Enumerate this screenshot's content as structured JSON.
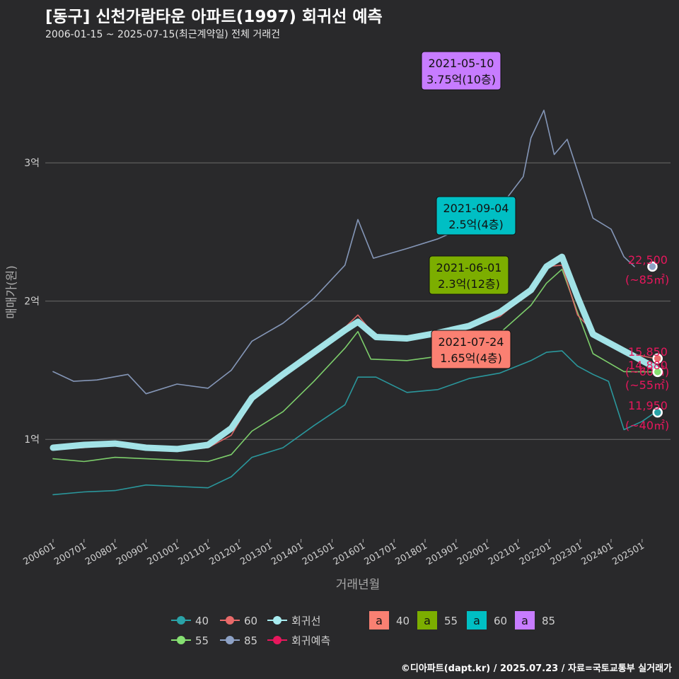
{
  "header": {
    "title": "[동구] 신천가람타운 아파트(1997) 회귀선 예측",
    "subtitle": "2006-01-15 ~ 2025-07-15(최근계약일) 전체 거래건",
    "credit": "©디아파트(dapt.kr) / 2025.07.23 / 자료=국토교통부 실거래가"
  },
  "colors": {
    "background": "#29292b",
    "s40": "#2aa3a8",
    "s55": "#86e072",
    "s60": "#e96a6a",
    "s85": "#8ea2c6",
    "trend": "#a8ecf0",
    "forecast": "#e8175d",
    "callout40": "#fa8072",
    "callout55": "#7cae00",
    "callout60": "#00bfc4",
    "callout85": "#c77cff"
  },
  "chart_data": {
    "type": "line",
    "xlabel": "거래년월",
    "ylabel": "매매가(원)",
    "x_range": [
      "2005-10",
      "2025-12"
    ],
    "ylim": [
      2800,
      38500
    ],
    "y_ticks": [
      {
        "value": 10000,
        "label": "1억"
      },
      {
        "value": 20000,
        "label": "2억"
      },
      {
        "value": 30000,
        "label": "3억"
      }
    ],
    "x_ticks": [
      "200601",
      "200701",
      "200801",
      "200901",
      "201001",
      "201101",
      "201201",
      "201301",
      "201401",
      "201501",
      "201601",
      "201701",
      "201801",
      "201901",
      "202001",
      "202101",
      "202201",
      "202301",
      "202401",
      "202501"
    ],
    "grid": true,
    "series": [
      {
        "name": "40",
        "key": "s40",
        "points": [
          [
            "2006-01",
            6000
          ],
          [
            "2007-01",
            6200
          ],
          [
            "2008-01",
            6300
          ],
          [
            "2009-01",
            6700
          ],
          [
            "2010-01",
            6600
          ],
          [
            "2011-01",
            6500
          ],
          [
            "2011-10",
            7300
          ],
          [
            "2012-06",
            8700
          ],
          [
            "2013-06",
            9400
          ],
          [
            "2014-06",
            11000
          ],
          [
            "2015-06",
            12500
          ],
          [
            "2015-11",
            14500
          ],
          [
            "2016-06",
            14500
          ],
          [
            "2017-06",
            13400
          ],
          [
            "2018-06",
            13600
          ],
          [
            "2019-06",
            14400
          ],
          [
            "2020-06",
            14800
          ],
          [
            "2021-06",
            15700
          ],
          [
            "2021-12",
            16300
          ],
          [
            "2022-06",
            16400
          ],
          [
            "2022-12",
            15300
          ],
          [
            "2023-06",
            14700
          ],
          [
            "2023-12",
            14200
          ],
          [
            "2024-06",
            10700
          ],
          [
            "2025-01",
            11300
          ],
          [
            "2025-06",
            11950
          ]
        ]
      },
      {
        "name": "55",
        "key": "s55",
        "points": [
          [
            "2006-01",
            8600
          ],
          [
            "2007-01",
            8400
          ],
          [
            "2008-01",
            8700
          ],
          [
            "2009-01",
            8600
          ],
          [
            "2010-01",
            8500
          ],
          [
            "2011-01",
            8400
          ],
          [
            "2011-10",
            8900
          ],
          [
            "2012-06",
            10600
          ],
          [
            "2013-06",
            12000
          ],
          [
            "2014-06",
            14200
          ],
          [
            "2015-06",
            16600
          ],
          [
            "2015-11",
            17800
          ],
          [
            "2016-04",
            15800
          ],
          [
            "2017-06",
            15700
          ],
          [
            "2018-06",
            16000
          ],
          [
            "2019-06",
            16500
          ],
          [
            "2020-06",
            17700
          ],
          [
            "2021-06",
            19700
          ],
          [
            "2021-12",
            21300
          ],
          [
            "2022-06",
            22300
          ],
          [
            "2022-12",
            19200
          ],
          [
            "2023-06",
            16200
          ],
          [
            "2024-06",
            14900
          ],
          [
            "2025-06",
            14880
          ]
        ]
      },
      {
        "name": "60",
        "key": "s60",
        "points": [
          [
            "2006-01",
            9300
          ],
          [
            "2007-01",
            9400
          ],
          [
            "2008-01",
            9700
          ],
          [
            "2009-01",
            9500
          ],
          [
            "2010-01",
            9200
          ],
          [
            "2011-01",
            9400
          ],
          [
            "2011-10",
            10300
          ],
          [
            "2012-06",
            12800
          ],
          [
            "2013-06",
            14600
          ],
          [
            "2014-06",
            16200
          ],
          [
            "2015-06",
            18100
          ],
          [
            "2015-11",
            19000
          ],
          [
            "2016-06",
            17400
          ],
          [
            "2017-06",
            17300
          ],
          [
            "2018-06",
            17600
          ],
          [
            "2019-06",
            18100
          ],
          [
            "2020-06",
            18900
          ],
          [
            "2021-06",
            20700
          ],
          [
            "2021-12",
            22500
          ],
          [
            "2022-06",
            22600
          ],
          [
            "2022-12",
            19000
          ],
          [
            "2023-06",
            17800
          ],
          [
            "2024-06",
            16300
          ],
          [
            "2025-06",
            15850
          ]
        ]
      },
      {
        "name": "85",
        "key": "s85",
        "points": [
          [
            "2006-01",
            14900
          ],
          [
            "2006-09",
            14200
          ],
          [
            "2007-06",
            14300
          ],
          [
            "2008-06",
            14700
          ],
          [
            "2009-01",
            13300
          ],
          [
            "2010-01",
            14000
          ],
          [
            "2011-01",
            13700
          ],
          [
            "2011-10",
            15000
          ],
          [
            "2012-06",
            17100
          ],
          [
            "2013-06",
            18400
          ],
          [
            "2014-06",
            20200
          ],
          [
            "2015-06",
            22600
          ],
          [
            "2015-11",
            25900
          ],
          [
            "2016-05",
            23100
          ],
          [
            "2017-06",
            23800
          ],
          [
            "2018-06",
            24500
          ],
          [
            "2019-06",
            25500
          ],
          [
            "2020-06",
            26800
          ],
          [
            "2021-03",
            29000
          ],
          [
            "2021-06",
            31800
          ],
          [
            "2021-11",
            33800
          ],
          [
            "2022-03",
            30600
          ],
          [
            "2022-08",
            31700
          ],
          [
            "2023-06",
            26000
          ],
          [
            "2024-01",
            25200
          ],
          [
            "2024-06",
            23200
          ],
          [
            "2024-10",
            22500
          ]
        ]
      },
      {
        "name": "회귀선",
        "key": "trend",
        "points": [
          [
            "2006-01",
            9400
          ],
          [
            "2007-01",
            9600
          ],
          [
            "2008-01",
            9700
          ],
          [
            "2009-01",
            9400
          ],
          [
            "2010-01",
            9300
          ],
          [
            "2011-01",
            9600
          ],
          [
            "2011-10",
            10800
          ],
          [
            "2012-06",
            13000
          ],
          [
            "2013-06",
            14700
          ],
          [
            "2014-06",
            16300
          ],
          [
            "2015-06",
            17900
          ],
          [
            "2015-11",
            18500
          ],
          [
            "2016-06",
            17400
          ],
          [
            "2017-06",
            17300
          ],
          [
            "2018-06",
            17700
          ],
          [
            "2019-06",
            18200
          ],
          [
            "2020-06",
            19200
          ],
          [
            "2021-06",
            20800
          ],
          [
            "2021-12",
            22500
          ],
          [
            "2022-06",
            23200
          ],
          [
            "2022-12",
            20300
          ],
          [
            "2023-06",
            17600
          ],
          [
            "2024-06",
            16400
          ],
          [
            "2025-06",
            15200
          ]
        ]
      }
    ],
    "forecast_points": [
      {
        "series": "85",
        "value": 22500,
        "label": "22,500",
        "area": "(~85㎡)",
        "date": "2025-05"
      },
      {
        "series": "60",
        "value": 15850,
        "label": "15,850",
        "area": "(~60㎡)",
        "date": "2025-07"
      },
      {
        "series": "55",
        "value": 14880,
        "label": "14,880",
        "area": "(~55㎡)",
        "date": "2025-07"
      },
      {
        "series": "40",
        "value": 11950,
        "label": "11,950",
        "area": "(~40㎡)",
        "date": "2025-07"
      }
    ],
    "annotations": [
      {
        "series": "85",
        "date_text": "2021-05-10",
        "price_text": "3.75억(10층)",
        "date": "2021-05",
        "value": 37500
      },
      {
        "series": "60",
        "date_text": "2021-09-04",
        "price_text": "2.5억(4층)",
        "date": "2021-09",
        "value": 25000
      },
      {
        "series": "55",
        "date_text": "2021-06-01",
        "price_text": "2.3억(12층)",
        "date": "2021-06",
        "value": 23000
      },
      {
        "series": "40",
        "date_text": "2021-07-24",
        "price_text": "1.65억(4층)",
        "date": "2021-07",
        "value": 16500
      }
    ],
    "legend": {
      "placement": "bottom",
      "line_items": [
        {
          "label": "40",
          "key": "s40"
        },
        {
          "label": "60",
          "key": "s60"
        },
        {
          "label": "회귀선",
          "key": "trend"
        },
        {
          "label": "55",
          "key": "s55"
        },
        {
          "label": "85",
          "key": "s85"
        },
        {
          "label": "회귀예측",
          "key": "forecast"
        }
      ],
      "box_glyph": "a",
      "box_items": [
        {
          "label": "40",
          "key": "callout40"
        },
        {
          "label": "55",
          "key": "callout55"
        },
        {
          "label": "60",
          "key": "callout60"
        },
        {
          "label": "85",
          "key": "callout85"
        }
      ]
    }
  }
}
